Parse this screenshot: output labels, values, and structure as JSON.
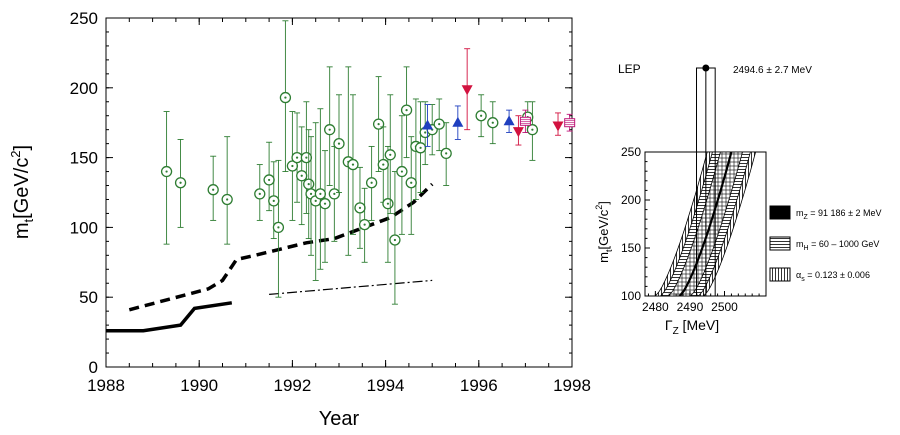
{
  "chart_data": [
    {
      "type": "scatter",
      "xlabel": "Year",
      "ylabel_main": "m",
      "ylabel_sub": "t",
      "ylabel_unit": "[GeV/c",
      "ylabel_sup": "2",
      "ylabel_close": "]",
      "xlim": [
        1988,
        1998
      ],
      "ylim": [
        0,
        250
      ],
      "x_ticks": [
        1988,
        1990,
        1992,
        1994,
        1996,
        1998
      ],
      "y_ticks": [
        0,
        50,
        100,
        150,
        200,
        250
      ],
      "indirect_fits": {
        "marker": "circle-dot",
        "color": "#2e7d32",
        "points": [
          {
            "x": 1989.3,
            "y": 140,
            "lo": 88,
            "hi": 183
          },
          {
            "x": 1989.6,
            "y": 132,
            "lo": 100,
            "hi": 163
          },
          {
            "x": 1990.3,
            "y": 127,
            "lo": 105,
            "hi": 151
          },
          {
            "x": 1990.6,
            "y": 120,
            "lo": 88,
            "hi": 165
          },
          {
            "x": 1991.3,
            "y": 124,
            "lo": 105,
            "hi": 145
          },
          {
            "x": 1991.5,
            "y": 134,
            "lo": 112,
            "hi": 161
          },
          {
            "x": 1991.6,
            "y": 119,
            "lo": 92,
            "hi": 147
          },
          {
            "x": 1991.7,
            "y": 100,
            "lo": 50,
            "hi": 148
          },
          {
            "x": 1991.85,
            "y": 193,
            "lo": 140,
            "hi": 248
          },
          {
            "x": 1992.0,
            "y": 144,
            "lo": 105,
            "hi": 183
          },
          {
            "x": 1992.1,
            "y": 150,
            "lo": 118,
            "hi": 182
          },
          {
            "x": 1992.2,
            "y": 137,
            "lo": 102,
            "hi": 172
          },
          {
            "x": 1992.3,
            "y": 150,
            "lo": 110,
            "hi": 190
          },
          {
            "x": 1992.35,
            "y": 131,
            "lo": 92,
            "hi": 170
          },
          {
            "x": 1992.4,
            "y": 124,
            "lo": 80,
            "hi": 165
          },
          {
            "x": 1992.5,
            "y": 119,
            "lo": 62,
            "hi": 175
          },
          {
            "x": 1992.6,
            "y": 124,
            "lo": 70,
            "hi": 185
          },
          {
            "x": 1992.7,
            "y": 117,
            "lo": 75,
            "hi": 155
          },
          {
            "x": 1992.8,
            "y": 170,
            "lo": 130,
            "hi": 215
          },
          {
            "x": 1992.9,
            "y": 124,
            "lo": 90,
            "hi": 158
          },
          {
            "x": 1993.0,
            "y": 160,
            "lo": 125,
            "hi": 195
          },
          {
            "x": 1993.2,
            "y": 147,
            "lo": 80,
            "hi": 215
          },
          {
            "x": 1993.3,
            "y": 145,
            "lo": 95,
            "hi": 195
          },
          {
            "x": 1993.45,
            "y": 114,
            "lo": 85,
            "hi": 143
          },
          {
            "x": 1993.55,
            "y": 102,
            "lo": 75,
            "hi": 128
          },
          {
            "x": 1993.7,
            "y": 132,
            "lo": 105,
            "hi": 158
          },
          {
            "x": 1993.85,
            "y": 174,
            "lo": 140,
            "hi": 208
          },
          {
            "x": 1993.95,
            "y": 145,
            "lo": 118,
            "hi": 172
          },
          {
            "x": 1994.05,
            "y": 117,
            "lo": 75,
            "hi": 158
          },
          {
            "x": 1994.1,
            "y": 152,
            "lo": 110,
            "hi": 195
          },
          {
            "x": 1994.2,
            "y": 91,
            "lo": 45,
            "hi": 140
          },
          {
            "x": 1994.35,
            "y": 140,
            "lo": 95,
            "hi": 180
          },
          {
            "x": 1994.45,
            "y": 184,
            "lo": 150,
            "hi": 215
          },
          {
            "x": 1994.55,
            "y": 132,
            "lo": 95,
            "hi": 165
          },
          {
            "x": 1994.65,
            "y": 158,
            "lo": 120,
            "hi": 192
          },
          {
            "x": 1994.75,
            "y": 157,
            "lo": 125,
            "hi": 190
          },
          {
            "x": 1994.85,
            "y": 168,
            "lo": 145,
            "hi": 190
          },
          {
            "x": 1995.0,
            "y": 170,
            "lo": 152,
            "hi": 188
          },
          {
            "x": 1995.15,
            "y": 174,
            "lo": 155,
            "hi": 192
          },
          {
            "x": 1995.3,
            "y": 153,
            "lo": 130,
            "hi": 175
          },
          {
            "x": 1996.05,
            "y": 180,
            "lo": 165,
            "hi": 195
          },
          {
            "x": 1996.3,
            "y": 175,
            "lo": 160,
            "hi": 190
          },
          {
            "x": 1997.05,
            "y": 179,
            "lo": 168,
            "hi": 190
          },
          {
            "x": 1997.15,
            "y": 170,
            "lo": 148,
            "hi": 190
          }
        ]
      },
      "blue_triangles": {
        "marker": "triangle-up",
        "color": "#1f3fbf",
        "points": [
          {
            "x": 1994.9,
            "y": 173,
            "lo": 158,
            "hi": 188
          },
          {
            "x": 1995.55,
            "y": 175,
            "lo": 163,
            "hi": 187
          },
          {
            "x": 1996.65,
            "y": 176,
            "lo": 168,
            "hi": 184
          }
        ]
      },
      "red_triangles": {
        "marker": "triangle-down",
        "color": "#d2123f",
        "points": [
          {
            "x": 1995.75,
            "y": 199,
            "lo": 170,
            "hi": 228
          },
          {
            "x": 1996.85,
            "y": 169,
            "lo": 159,
            "hi": 180
          },
          {
            "x": 1997.7,
            "y": 173,
            "lo": 166,
            "hi": 182
          }
        ]
      },
      "magenta_squares": {
        "marker": "square-hatched",
        "color": "#c0187a",
        "points": [
          {
            "x": 1997.0,
            "y": 176,
            "lo": 168,
            "hi": 184
          },
          {
            "x": 1997.95,
            "y": 175,
            "lo": 169,
            "hi": 181
          }
        ]
      },
      "lower_limit_solid": [
        [
          1988,
          26
        ],
        [
          1988.8,
          26
        ],
        [
          1989.6,
          30
        ],
        [
          1989.9,
          42
        ],
        [
          1990.7,
          46
        ]
      ],
      "lower_limit_dashed": [
        [
          1988.5,
          41
        ],
        [
          1990.2,
          56
        ],
        [
          1990.5,
          62
        ],
        [
          1990.8,
          77
        ],
        [
          1991.2,
          80
        ],
        [
          1992.3,
          89
        ],
        [
          1992.9,
          92
        ],
        [
          1994.1,
          107
        ],
        [
          1994.6,
          118
        ],
        [
          1995.0,
          131
        ]
      ],
      "lower_limit_dashdot": [
        [
          1991.5,
          52
        ],
        [
          1995.0,
          62
        ]
      ]
    },
    {
      "type": "band",
      "title": "LEP",
      "measurement": "2494.6  ± 2.7 MeV",
      "xlabel_main": "Γ",
      "xlabel_sub": "Z",
      "xlabel_unit": " [MeV]",
      "ylabel_main": "m",
      "ylabel_sub": "t",
      "ylabel_unit": "[GeV/c",
      "ylabel_sup": "2",
      "ylabel_close": "]",
      "xlim": [
        2477,
        2512
      ],
      "ylim": [
        100,
        250
      ],
      "x_ticks": [
        2480,
        2490,
        2500
      ],
      "y_ticks": [
        100,
        150,
        200,
        250
      ],
      "lep_value": 2494.6,
      "lep_error": 2.7,
      "band_mt": [
        100,
        250
      ],
      "band_center": [
        2487.0,
        2502.0
      ],
      "legend": [
        {
          "fill": "solid",
          "label": "m",
          "sub": "Z",
          "rest": " = 91 186  ±  2 MeV"
        },
        {
          "fill": "horizontal-lines",
          "label": "m",
          "sub": "H",
          "rest": " = 60 – 1000 GeV"
        },
        {
          "fill": "vertical-lines",
          "label": "α",
          "sub": "s",
          "rest": " = 0.123  ±  0.006"
        }
      ]
    }
  ]
}
